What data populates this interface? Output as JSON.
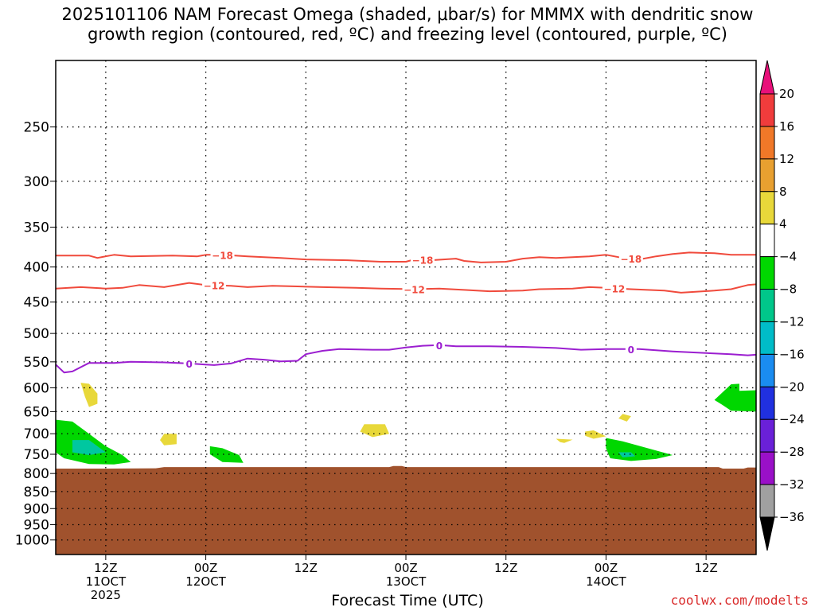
{
  "title_line1": "2025101106 NAM Forecast Omega (shaded, μbar/s) for MMMX with dendritic snow",
  "title_line2": "growth region (contoured, red, ºC) and freezing level (contoured, purple, ºC)",
  "xlabel": "Forecast Time (UTC)",
  "credit": "coolwx.com/modelts",
  "colors": {
    "terrain": "#a0522d",
    "dgz": "#f04a3c",
    "freezing": "#9b1ed0",
    "omega_green": "#00d700",
    "omega_teal": "#00c7a0",
    "omega_yellow": "#e8d83a"
  },
  "chart_data": {
    "type": "time-height cross-section",
    "x_unit": "forecast hours from 2025-10-11 06Z",
    "xlim": [
      0,
      84
    ],
    "y_scale": "log-pressure",
    "ylim_hPa": [
      200,
      1050
    ],
    "yticks": [
      250,
      300,
      350,
      400,
      450,
      500,
      550,
      600,
      650,
      700,
      750,
      800,
      850,
      900,
      950,
      1000
    ],
    "xticks": [
      {
        "hour": 6,
        "line1": "12Z",
        "line2": "11OCT",
        "line3": "2025"
      },
      {
        "hour": 18,
        "line1": "00Z",
        "line2": "12OCT",
        "line3": ""
      },
      {
        "hour": 30,
        "line1": "12Z",
        "line2": "",
        "line3": ""
      },
      {
        "hour": 42,
        "line1": "00Z",
        "line2": "13OCT",
        "line3": ""
      },
      {
        "hour": 54,
        "line1": "12Z",
        "line2": "",
        "line3": ""
      },
      {
        "hour": 66,
        "line1": "00Z",
        "line2": "14OCT",
        "line3": ""
      },
      {
        "hour": 78,
        "line1": "12Z",
        "line2": "",
        "line3": ""
      }
    ],
    "grid": true,
    "colorbar": {
      "labels": [
        "20",
        "16",
        "12",
        "8",
        "4",
        "−4",
        "−8",
        "−12",
        "−16",
        "−20",
        "−24",
        "−28",
        "−32",
        "−36"
      ],
      "colors": [
        "#f03c3c",
        "#f07828",
        "#e8a030",
        "#e8d83a",
        "#ffffff",
        "#00d700",
        "#00c78a",
        "#00bcc8",
        "#1a8cf0",
        "#2030e0",
        "#6a20d8",
        "#9a10c8",
        "#a0a0a0"
      ],
      "top_arrow_color": "#e8107a",
      "bottom_arrow_color": "#000000"
    },
    "terrain_top_hPa": [
      [
        0,
        787
      ],
      [
        6,
        787
      ],
      [
        12,
        786
      ],
      [
        13,
        783
      ],
      [
        30,
        783
      ],
      [
        40,
        783
      ],
      [
        40.5,
        780
      ],
      [
        41.5,
        780
      ],
      [
        42,
        783
      ],
      [
        79.5,
        783
      ],
      [
        80,
        787
      ],
      [
        82.5,
        787
      ],
      [
        83,
        784
      ],
      [
        84,
        784
      ]
    ],
    "dgz_contours": [
      {
        "label": "−18",
        "label_hours": [
          20,
          44,
          69
        ],
        "points": [
          [
            0,
            385
          ],
          [
            4,
            385
          ],
          [
            5,
            388
          ],
          [
            6,
            386
          ],
          [
            7,
            384
          ],
          [
            9,
            386
          ],
          [
            14,
            385
          ],
          [
            17,
            386
          ],
          [
            18,
            384
          ],
          [
            20,
            384
          ],
          [
            23,
            386
          ],
          [
            27,
            388
          ],
          [
            30,
            390
          ],
          [
            35,
            391
          ],
          [
            39,
            393
          ],
          [
            42,
            393
          ],
          [
            43,
            390
          ],
          [
            45,
            391
          ],
          [
            48,
            389
          ],
          [
            49,
            392
          ],
          [
            51,
            394
          ],
          [
            54,
            393
          ],
          [
            56,
            389
          ],
          [
            58,
            387
          ],
          [
            60,
            388
          ],
          [
            64,
            386
          ],
          [
            66,
            384
          ],
          [
            68,
            388
          ],
          [
            70,
            390
          ],
          [
            72,
            386
          ],
          [
            74,
            383
          ],
          [
            76,
            381
          ],
          [
            79,
            382
          ],
          [
            81,
            384
          ],
          [
            84,
            384
          ]
        ]
      },
      {
        "label": "−12",
        "label_hours": [
          19,
          43,
          67
        ],
        "points": [
          [
            0,
            430
          ],
          [
            3,
            428
          ],
          [
            6,
            430
          ],
          [
            8,
            429
          ],
          [
            10,
            425
          ],
          [
            13,
            428
          ],
          [
            16,
            422
          ],
          [
            18,
            425
          ],
          [
            21,
            426
          ],
          [
            23,
            428
          ],
          [
            26,
            426
          ],
          [
            29,
            427
          ],
          [
            32,
            428
          ],
          [
            36,
            429
          ],
          [
            39,
            430
          ],
          [
            43,
            431
          ],
          [
            46,
            430
          ],
          [
            49,
            432
          ],
          [
            52,
            434
          ],
          [
            56,
            433
          ],
          [
            58,
            431
          ],
          [
            62,
            430
          ],
          [
            64,
            428
          ],
          [
            66,
            429
          ],
          [
            69,
            431
          ],
          [
            73,
            433
          ],
          [
            75,
            436
          ],
          [
            79,
            433
          ],
          [
            81,
            431
          ],
          [
            83,
            425
          ],
          [
            84,
            424
          ]
        ]
      }
    ],
    "freezing_contour": {
      "label": "0",
      "label_hours": [
        16,
        46,
        69
      ],
      "points": [
        [
          0,
          555
        ],
        [
          1,
          570
        ],
        [
          2,
          568
        ],
        [
          4,
          552
        ],
        [
          7,
          552
        ],
        [
          9,
          550
        ],
        [
          13,
          551
        ],
        [
          16,
          553
        ],
        [
          19,
          556
        ],
        [
          21,
          553
        ],
        [
          23,
          544
        ],
        [
          25,
          546
        ],
        [
          27,
          549
        ],
        [
          29,
          548
        ],
        [
          30,
          536
        ],
        [
          32,
          530
        ],
        [
          34,
          527
        ],
        [
          38,
          528
        ],
        [
          40,
          528
        ],
        [
          42,
          524
        ],
        [
          44,
          521
        ],
        [
          46,
          520
        ],
        [
          48,
          522
        ],
        [
          52,
          522
        ],
        [
          56,
          523
        ],
        [
          60,
          525
        ],
        [
          63,
          528
        ],
        [
          66,
          527
        ],
        [
          70,
          527
        ],
        [
          74,
          531
        ],
        [
          78,
          534
        ],
        [
          81,
          536
        ],
        [
          83,
          538
        ],
        [
          84,
          537
        ]
      ]
    },
    "omega_regions": [
      {
        "level": "−4",
        "color": "#00d700",
        "points": [
          [
            0,
            668
          ],
          [
            2,
            672
          ],
          [
            4,
            700
          ],
          [
            6,
            730
          ],
          [
            8,
            752
          ],
          [
            9,
            770
          ],
          [
            7,
            776
          ],
          [
            4,
            775
          ],
          [
            1,
            760
          ],
          [
            0,
            745
          ]
        ]
      },
      {
        "level": "−8",
        "color": "#00c7a0",
        "points": [
          [
            2,
            715
          ],
          [
            4,
            715
          ],
          [
            5,
            730
          ],
          [
            6,
            745
          ],
          [
            4,
            752
          ],
          [
            2,
            745
          ]
        ]
      },
      {
        "level": "−4",
        "color": "#00d700",
        "points": [
          [
            18.5,
            730
          ],
          [
            20,
            735
          ],
          [
            22,
            752
          ],
          [
            22.5,
            772
          ],
          [
            20,
            770
          ],
          [
            18.5,
            750
          ]
        ]
      },
      {
        "level": "−4",
        "color": "#00d700",
        "points": [
          [
            66,
            710
          ],
          [
            68,
            718
          ],
          [
            71,
            735
          ],
          [
            74,
            752
          ],
          [
            72,
            762
          ],
          [
            69,
            767
          ],
          [
            66.5,
            760
          ],
          [
            66,
            735
          ]
        ]
      },
      {
        "level": "−8",
        "color": "#00c7a0",
        "points": [
          [
            67.5,
            745
          ],
          [
            69,
            745
          ],
          [
            69.5,
            755
          ],
          [
            68,
            758
          ]
        ]
      },
      {
        "level": "−4",
        "color": "#00d700",
        "points": [
          [
            81,
            593
          ],
          [
            82,
            592
          ],
          [
            82,
            606
          ],
          [
            84,
            605
          ],
          [
            84,
            650
          ],
          [
            81,
            648
          ],
          [
            80,
            636
          ],
          [
            79,
            625
          ]
        ]
      },
      {
        "level": "4",
        "color": "#e8d83a",
        "points": [
          [
            3,
            590
          ],
          [
            4,
            592
          ],
          [
            5,
            612
          ],
          [
            5,
            633
          ],
          [
            4,
            640
          ],
          [
            3.5,
            618
          ]
        ]
      },
      {
        "level": "4",
        "color": "#e8d83a",
        "points": [
          [
            13,
            700
          ],
          [
            14.5,
            700
          ],
          [
            14.5,
            725
          ],
          [
            13,
            728
          ],
          [
            12.5,
            715
          ]
        ]
      },
      {
        "level": "4",
        "color": "#e8d83a",
        "points": [
          [
            37,
            678
          ],
          [
            39.5,
            678
          ],
          [
            40,
            700
          ],
          [
            38,
            708
          ],
          [
            36.5,
            695
          ]
        ]
      },
      {
        "level": "4",
        "color": "#e8d83a",
        "points": [
          [
            60,
            712
          ],
          [
            62,
            714
          ],
          [
            61,
            722
          ],
          [
            60.5,
            720
          ]
        ]
      },
      {
        "level": "4",
        "color": "#e8d83a",
        "points": [
          [
            63.5,
            695
          ],
          [
            64.5,
            692
          ],
          [
            66,
            706
          ],
          [
            64.5,
            712
          ],
          [
            63.5,
            705
          ]
        ]
      },
      {
        "level": "4",
        "color": "#e8d83a",
        "points": [
          [
            68,
            655
          ],
          [
            69,
            660
          ],
          [
            68.5,
            672
          ],
          [
            67.5,
            665
          ]
        ]
      }
    ]
  }
}
